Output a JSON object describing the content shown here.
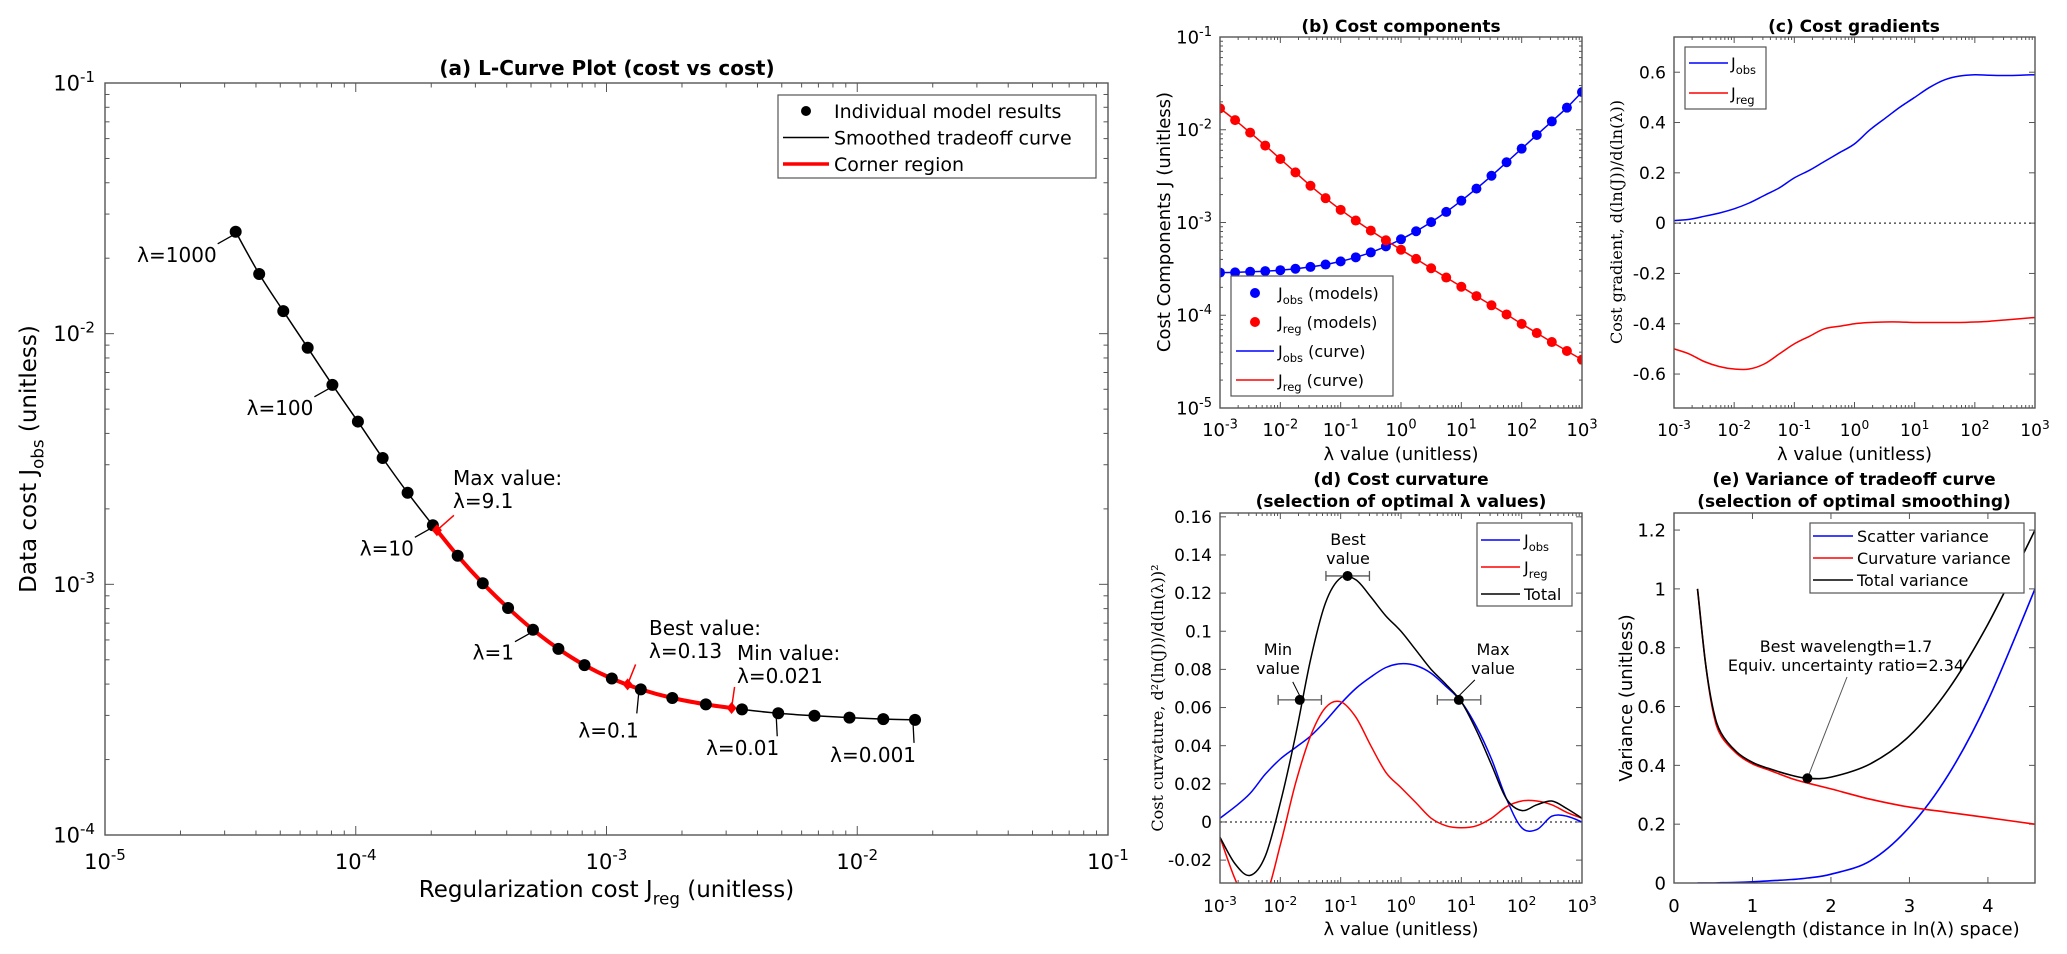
{
  "chart_data": [
    {
      "panel": "a",
      "type": "line",
      "title": "(a) L-Curve Plot (cost vs cost)",
      "xlabel": "Regularization cost J_{reg} (unitless)",
      "ylabel": "Data cost J_{obs} (unitless)",
      "xscale": "log",
      "yscale": "log",
      "xlim": [
        1e-05,
        0.1
      ],
      "ylim": [
        0.0001,
        0.1
      ],
      "xticks": [
        1e-05,
        0.0001,
        0.001,
        0.01,
        0.1
      ],
      "xtick_labels": [
        "10^{-5}",
        "10^{-4}",
        "10^{-3}",
        "10^{-2}",
        "10^{-1}"
      ],
      "yticks": [
        0.0001,
        0.001,
        0.01,
        0.1
      ],
      "ytick_labels": [
        "10^{-4}",
        "10^{-3}",
        "10^{-2}",
        "10^{-1}"
      ],
      "lambda": [
        0.001,
        0.00178,
        0.00316,
        0.00562,
        0.01,
        0.0178,
        0.0316,
        0.0562,
        0.1,
        0.178,
        0.316,
        0.562,
        1,
        1.78,
        3.16,
        5.62,
        10,
        17.8,
        31.6,
        56.2,
        100,
        178,
        316,
        562,
        1000
      ],
      "J_reg": [
        0.017,
        0.0127,
        0.00931,
        0.00675,
        0.00484,
        0.00347,
        0.00249,
        0.00183,
        0.00137,
        0.00105,
        0.000817,
        0.000643,
        0.000509,
        0.000405,
        0.000321,
        0.000255,
        0.000203,
        0.000161,
        0.000128,
        0.000102,
        8.07e-05,
        6.43e-05,
        5.14e-05,
        4.12e-05,
        3.32e-05
      ],
      "J_obs": [
        0.000288,
        0.00029,
        0.000294,
        0.000299,
        0.000306,
        0.000317,
        0.000332,
        0.000352,
        0.000381,
        0.000421,
        0.000476,
        0.000553,
        0.000659,
        0.000805,
        0.00101,
        0.0013,
        0.00172,
        0.00232,
        0.00319,
        0.00446,
        0.00625,
        0.00879,
        0.0123,
        0.0173,
        0.0255
      ],
      "legend": {
        "placement": "top-right",
        "entries": [
          "Individual model results",
          "Smoothed tradeoff curve",
          "Corner region"
        ]
      },
      "corner_region": {
        "lambda_range": [
          0.021,
          9.1
        ],
        "color": "#ff0000"
      },
      "point_labels": [
        {
          "lambda": 1000,
          "text": "λ=1000"
        },
        {
          "lambda": 100,
          "text": "λ=100"
        },
        {
          "lambda": 10,
          "text": "λ=10"
        },
        {
          "lambda": 1,
          "text": "λ=1"
        },
        {
          "lambda": 0.1,
          "text": "λ=0.1"
        },
        {
          "lambda": 0.01,
          "text": "λ=0.01"
        },
        {
          "lambda": 0.001,
          "text": "λ=0.001"
        }
      ],
      "selected": [
        {
          "lambda": 9.1,
          "lines": [
            "Max value:",
            "λ=9.1"
          ]
        },
        {
          "lambda": 0.13,
          "lines": [
            "Best value:",
            "λ=0.13"
          ]
        },
        {
          "lambda": 0.021,
          "lines": [
            "Min value:",
            "λ=0.021"
          ]
        }
      ]
    },
    {
      "panel": "b",
      "type": "line",
      "title": "(b) Cost components",
      "xlabel": "λ value (unitless)",
      "ylabel": "Cost Components J (unitless)",
      "xscale": "log",
      "yscale": "log",
      "xlim": [
        0.001,
        1000
      ],
      "ylim": [
        1e-05,
        0.1
      ],
      "xticks": [
        0.001,
        0.01,
        0.1,
        1,
        10,
        100,
        1000
      ],
      "xtick_labels": [
        "10^{-3}",
        "10^{-2}",
        "10^{-1}",
        "10^{0}",
        "10^{1}",
        "10^{2}",
        "10^{3}"
      ],
      "yticks": [
        1e-05,
        0.0001,
        0.001,
        0.01,
        0.1
      ],
      "ytick_labels": [
        "10^{-5}",
        "10^{-4}",
        "10^{-3}",
        "10^{-2}",
        "10^{-1}"
      ],
      "x": [
        0.001,
        0.00178,
        0.00316,
        0.00562,
        0.01,
        0.0178,
        0.0316,
        0.0562,
        0.1,
        0.178,
        0.316,
        0.562,
        1,
        1.78,
        3.16,
        5.62,
        10,
        17.8,
        31.6,
        56.2,
        100,
        178,
        316,
        562,
        1000
      ],
      "series": [
        {
          "name": "J_{obs}",
          "color": "#0000ff",
          "values": [
            0.000288,
            0.00029,
            0.000294,
            0.000299,
            0.000306,
            0.000317,
            0.000332,
            0.000352,
            0.000381,
            0.000421,
            0.000476,
            0.000553,
            0.000659,
            0.000805,
            0.00101,
            0.0013,
            0.00172,
            0.00232,
            0.00319,
            0.00446,
            0.00625,
            0.00879,
            0.0123,
            0.0173,
            0.0255
          ]
        },
        {
          "name": "J_{reg}",
          "color": "#ff0000",
          "values": [
            0.017,
            0.0127,
            0.00931,
            0.00675,
            0.00484,
            0.00347,
            0.00249,
            0.00183,
            0.00137,
            0.00105,
            0.000817,
            0.000643,
            0.000509,
            0.000405,
            0.000321,
            0.000255,
            0.000203,
            0.000161,
            0.000128,
            0.000102,
            8.07e-05,
            6.43e-05,
            5.14e-05,
            4.12e-05,
            3.32e-05
          ]
        }
      ],
      "legend": {
        "placement": "bottom-left",
        "entries": [
          "J_{obs} (models)",
          "J_{reg} (models)",
          "J_{obs} (curve)",
          "J_{reg} (curve)"
        ]
      }
    },
    {
      "panel": "c",
      "type": "line",
      "title": "(c) Cost gradients",
      "xlabel": "λ value (unitless)",
      "ylabel": "Cost gradient, d(ln(J))/d(ln(λ))",
      "xscale": "log",
      "yscale": "linear",
      "xlim": [
        0.001,
        1000
      ],
      "ylim": [
        -0.735,
        0.74
      ],
      "xticks": [
        0.001,
        0.01,
        0.1,
        1,
        10,
        100,
        1000
      ],
      "xtick_labels": [
        "10^{-3}",
        "10^{-2}",
        "10^{-1}",
        "10^{0}",
        "10^{1}",
        "10^{2}",
        "10^{3}"
      ],
      "yticks": [
        -0.6,
        -0.4,
        -0.2,
        0,
        0.2,
        0.4,
        0.6
      ],
      "ytick_labels": [
        "-0.6",
        "-0.4",
        "-0.2",
        "0",
        "0.2",
        "0.4",
        "0.6"
      ],
      "zero_line": true,
      "x": [
        0.001,
        0.00178,
        0.00316,
        0.00562,
        0.01,
        0.0178,
        0.0316,
        0.0562,
        0.1,
        0.178,
        0.316,
        0.562,
        1,
        1.78,
        3.16,
        5.62,
        10,
        17.8,
        31.6,
        56.2,
        100,
        178,
        316,
        562,
        1000
      ],
      "series": [
        {
          "name": "J_{obs}",
          "color": "#0000ff",
          "values": [
            0.01,
            0.015,
            0.027,
            0.04,
            0.057,
            0.08,
            0.11,
            0.14,
            0.18,
            0.21,
            0.245,
            0.28,
            0.315,
            0.37,
            0.415,
            0.46,
            0.5,
            0.54,
            0.57,
            0.585,
            0.59,
            0.588,
            0.587,
            0.588,
            0.59
          ]
        },
        {
          "name": "J_{reg}",
          "color": "#ff0000",
          "values": [
            -0.5,
            -0.52,
            -0.55,
            -0.57,
            -0.58,
            -0.58,
            -0.56,
            -0.52,
            -0.48,
            -0.45,
            -0.42,
            -0.41,
            -0.4,
            -0.395,
            -0.393,
            -0.393,
            -0.395,
            -0.395,
            -0.395,
            -0.395,
            -0.393,
            -0.39,
            -0.385,
            -0.38,
            -0.375
          ]
        }
      ],
      "legend": {
        "placement": "top-left",
        "entries": [
          "J_{obs}",
          "J_{reg}"
        ]
      }
    },
    {
      "panel": "d",
      "type": "line",
      "title": [
        "(d) Cost curvature",
        "(selection of optimal λ values)"
      ],
      "xlabel": "λ value (unitless)",
      "ylabel": "Cost curvature, d²(ln(J))/d(ln(λ))²",
      "xscale": "log",
      "yscale": "linear",
      "xlim": [
        0.001,
        1000
      ],
      "ylim": [
        -0.032,
        0.162
      ],
      "xticks": [
        0.001,
        0.01,
        0.1,
        1,
        10,
        100,
        1000
      ],
      "xtick_labels": [
        "10^{-3}",
        "10^{-2}",
        "10^{-1}",
        "10^{0}",
        "10^{1}",
        "10^{2}",
        "10^{3}"
      ],
      "yticks": [
        -0.02,
        0,
        0.02,
        0.04,
        0.06,
        0.08,
        0.1,
        0.12,
        0.14,
        0.16
      ],
      "ytick_labels": [
        "-0.02",
        "0",
        "0.02",
        "0.04",
        "0.06",
        "0.08",
        "0.1",
        "0.12",
        "0.14",
        "0.16"
      ],
      "zero_line": true,
      "x": [
        0.001,
        0.00178,
        0.00316,
        0.00562,
        0.01,
        0.0178,
        0.0316,
        0.0562,
        0.1,
        0.178,
        0.316,
        0.562,
        1,
        1.78,
        3.16,
        5.62,
        10,
        17.8,
        31.6,
        56.2,
        100,
        178,
        316,
        562,
        1000
      ],
      "series": [
        {
          "name": "J_{obs}",
          "color": "#0000ff",
          "values": [
            0.002,
            0.008,
            0.015,
            0.025,
            0.033,
            0.039,
            0.045,
            0.053,
            0.062,
            0.07,
            0.076,
            0.081,
            0.083,
            0.082,
            0.078,
            0.071,
            0.063,
            0.05,
            0.033,
            0.012,
            -0.003,
            -0.004,
            0.003,
            0.003,
            0.0
          ]
        },
        {
          "name": "J_{reg}",
          "color": "#ff0000",
          "values": [
            -0.008,
            -0.03,
            -0.045,
            -0.04,
            -0.012,
            0.02,
            0.045,
            0.06,
            0.063,
            0.055,
            0.04,
            0.026,
            0.018,
            0.01,
            0.002,
            -0.002,
            -0.003,
            -0.002,
            0.002,
            0.008,
            0.011,
            0.011,
            0.009,
            0.005,
            0.002
          ]
        },
        {
          "name": "Total",
          "color": "#000000",
          "values": [
            -0.008,
            -0.022,
            -0.028,
            -0.018,
            0.01,
            0.045,
            0.085,
            0.115,
            0.128,
            0.127,
            0.118,
            0.108,
            0.1,
            0.09,
            0.08,
            0.072,
            0.063,
            0.048,
            0.03,
            0.012,
            0.006,
            0.009,
            0.011,
            0.007,
            0.002
          ]
        }
      ],
      "selected": [
        {
          "lambda": 0.021,
          "value": 0.064,
          "range": [
            0.0092,
            0.048
          ],
          "lines": [
            "Min",
            "value"
          ]
        },
        {
          "lambda": 0.13,
          "value": 0.129,
          "range": [
            0.057,
            0.3
          ],
          "lines": [
            "Best",
            "value"
          ]
        },
        {
          "lambda": 9.1,
          "value": 0.064,
          "range": [
            4.0,
            21
          ],
          "lines": [
            "Max",
            "value"
          ]
        }
      ],
      "legend": {
        "placement": "top-right",
        "entries": [
          "J_{obs}",
          "J_{reg}",
          "Total"
        ]
      }
    },
    {
      "panel": "e",
      "type": "line",
      "title": [
        "(e) Variance of tradeoff curve",
        "(selection of optimal smoothing)"
      ],
      "xlabel": "Wavelength (distance in ln(λ) space)",
      "ylabel": "Variance (unitless)",
      "xscale": "linear",
      "yscale": "linear",
      "xlim": [
        0,
        4.6
      ],
      "ylim": [
        0,
        1.258
      ],
      "xticks": [
        0,
        1,
        2,
        3,
        4
      ],
      "xtick_labels": [
        "0",
        "1",
        "2",
        "3",
        "4"
      ],
      "yticks": [
        0,
        0.2,
        0.4,
        0.6,
        0.8,
        1,
        1.2
      ],
      "ytick_labels": [
        "0",
        "0.2",
        "0.4",
        "0.6",
        "0.8",
        "1",
        "1.2"
      ],
      "x": [
        0.3,
        0.4,
        0.5,
        0.6,
        0.8,
        1.0,
        1.2,
        1.5,
        1.7,
        2.0,
        2.5,
        3.0,
        3.5,
        4.0,
        4.6
      ],
      "series": [
        {
          "name": "Scatter variance",
          "color": "#0000ff",
          "values": [
            0,
            0,
            0,
            0.001,
            0.002,
            0.004,
            0.007,
            0.012,
            0.017,
            0.03,
            0.075,
            0.19,
            0.37,
            0.62,
            1.0
          ]
        },
        {
          "name": "Curvature variance",
          "color": "#ff0000",
          "values": [
            1.0,
            0.75,
            0.58,
            0.5,
            0.44,
            0.405,
            0.385,
            0.355,
            0.34,
            0.32,
            0.285,
            0.258,
            0.24,
            0.222,
            0.2
          ]
        },
        {
          "name": "Total variance",
          "color": "#000000",
          "values": [
            1.0,
            0.75,
            0.59,
            0.51,
            0.445,
            0.41,
            0.39,
            0.366,
            0.356,
            0.36,
            0.405,
            0.5,
            0.66,
            0.88,
            1.2
          ]
        }
      ],
      "best": {
        "wavelength": 1.7,
        "variance": 0.356,
        "lines": [
          "Best wavelength=1.7",
          "Equiv. uncertainty ratio=2.34"
        ]
      },
      "legend": {
        "placement": "top-right",
        "entries": [
          "Scatter variance",
          "Curvature variance",
          "Total variance"
        ]
      }
    }
  ]
}
